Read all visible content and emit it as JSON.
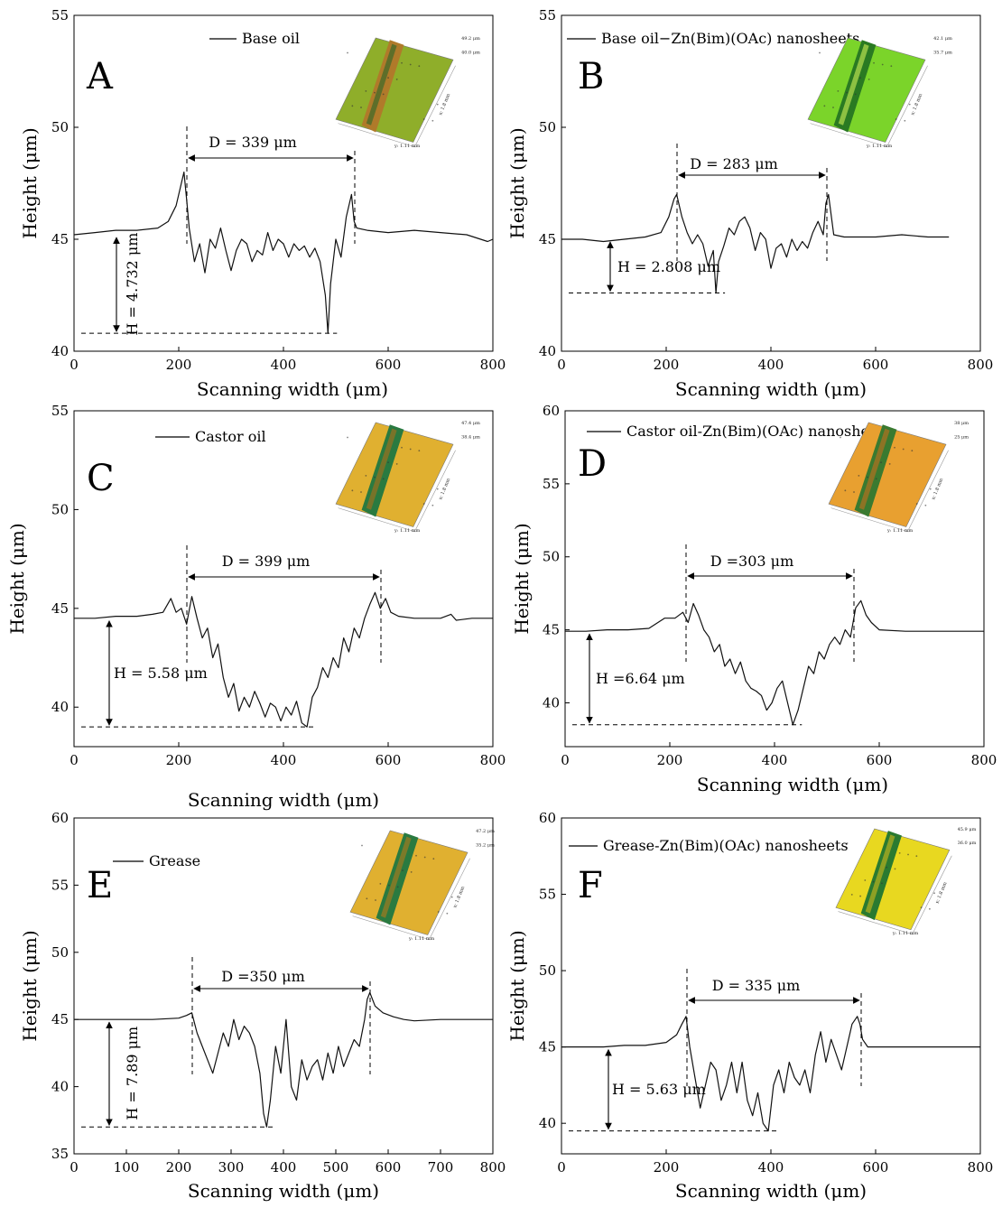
{
  "chart_data": [
    {
      "type": "line",
      "panel": "A",
      "legend": "Base oil",
      "xlabel": "Scanning width (μm)",
      "ylabel": "Height (μm)",
      "xlim": [
        0,
        800
      ],
      "ylim": [
        40,
        55
      ],
      "xticks": [
        "0",
        "200",
        "400",
        "600",
        "800"
      ],
      "yticks": [
        "40",
        "45",
        "50",
        "55"
      ],
      "annotations": {
        "D": "D = 339 μm",
        "H": "H = 4.732 μm"
      },
      "inset_labels": [
        "49.2 μm",
        "40.0 μm",
        "x: 1.8 mm",
        "y: 1.11 mm"
      ],
      "series": [
        {
          "x": [
            0,
            40,
            80,
            120,
            160,
            180,
            195,
            205,
            210,
            215,
            220,
            230,
            240,
            250,
            260,
            270,
            280,
            290,
            300,
            310,
            320,
            330,
            340,
            350,
            360,
            370,
            380,
            390,
            400,
            410,
            420,
            430,
            440,
            450,
            460,
            470,
            480,
            485,
            490,
            500,
            510,
            520,
            530,
            535,
            540,
            560,
            600,
            650,
            700,
            750,
            790,
            800
          ],
          "y": [
            45.2,
            45.3,
            45.4,
            45.4,
            45.5,
            45.8,
            46.5,
            47.5,
            48.0,
            46.8,
            45.5,
            44.0,
            44.8,
            43.5,
            45.0,
            44.6,
            45.5,
            44.5,
            43.6,
            44.5,
            45.0,
            44.8,
            44.0,
            44.5,
            44.3,
            45.3,
            44.5,
            45.0,
            44.8,
            44.2,
            44.8,
            44.5,
            44.7,
            44.2,
            44.6,
            44.0,
            42.5,
            40.8,
            43.0,
            45.0,
            44.2,
            46.0,
            47.0,
            45.8,
            45.5,
            45.4,
            45.3,
            45.4,
            45.3,
            45.2,
            44.9,
            45.0
          ]
        }
      ]
    },
    {
      "type": "line",
      "panel": "B",
      "legend": "Base oil−Zn(Bim)(OAc) nanosheets",
      "xlabel": "Scanning width (μm)",
      "ylabel": "Height (μm)",
      "xlim": [
        0,
        800
      ],
      "ylim": [
        40,
        55
      ],
      "xticks": [
        "0",
        "200",
        "400",
        "600",
        "800"
      ],
      "yticks": [
        "40",
        "45",
        "50",
        "55"
      ],
      "annotations": {
        "D": "D = 283 μm",
        "H": "H = 2.808 μm"
      },
      "inset_labels": [
        "42.1 μm",
        "35.7 μm",
        "x: 1.8 mm",
        "y: 1.11 mm"
      ],
      "series": [
        {
          "x": [
            0,
            40,
            80,
            120,
            160,
            190,
            205,
            215,
            220,
            230,
            240,
            250,
            260,
            270,
            280,
            290,
            295,
            300,
            310,
            320,
            330,
            340,
            350,
            360,
            370,
            380,
            390,
            400,
            410,
            420,
            430,
            440,
            450,
            460,
            470,
            480,
            490,
            500,
            505,
            510,
            520,
            540,
            600,
            650,
            700,
            740
          ],
          "y": [
            45.0,
            45.0,
            44.9,
            45.0,
            45.1,
            45.3,
            46.0,
            46.8,
            47.0,
            46.0,
            45.3,
            44.8,
            45.2,
            44.8,
            43.8,
            44.5,
            42.6,
            44.0,
            44.7,
            45.5,
            45.2,
            45.8,
            46.0,
            45.5,
            44.5,
            45.3,
            45.0,
            43.7,
            44.6,
            44.8,
            44.2,
            45.0,
            44.5,
            44.9,
            44.6,
            45.3,
            45.8,
            45.2,
            46.6,
            47.0,
            45.2,
            45.1,
            45.1,
            45.2,
            45.1,
            45.1
          ]
        }
      ]
    },
    {
      "type": "line",
      "panel": "C",
      "legend": "Castor oil",
      "xlabel": "Scanning width (μm)",
      "ylabel": "Height (μm)",
      "xlim": [
        0,
        800
      ],
      "ylim": [
        38,
        55
      ],
      "xticks": [
        "0",
        "200",
        "400",
        "600",
        "800"
      ],
      "yticks": [
        "40",
        "45",
        "50",
        "55"
      ],
      "annotations": {
        "D": "D = 399 μm",
        "H": "H = 5.58 μm"
      },
      "inset_labels": [
        "47.4 μm",
        "38.4 μm",
        "x: 1.8 mm",
        "y: 1.11 mm"
      ],
      "series": [
        {
          "x": [
            0,
            40,
            80,
            120,
            150,
            170,
            185,
            195,
            205,
            215,
            225,
            235,
            245,
            255,
            265,
            275,
            285,
            295,
            305,
            315,
            325,
            335,
            345,
            355,
            365,
            375,
            385,
            395,
            405,
            415,
            425,
            435,
            445,
            455,
            465,
            475,
            485,
            495,
            505,
            515,
            525,
            535,
            545,
            555,
            565,
            575,
            585,
            595,
            605,
            620,
            650,
            700,
            720,
            730,
            760,
            800
          ],
          "y": [
            44.5,
            44.5,
            44.6,
            44.6,
            44.7,
            44.8,
            45.5,
            44.8,
            45.0,
            44.2,
            45.6,
            44.5,
            43.5,
            44.0,
            42.5,
            43.2,
            41.5,
            40.5,
            41.2,
            39.8,
            40.5,
            40.0,
            40.8,
            40.2,
            39.5,
            40.2,
            40.0,
            39.3,
            40.0,
            39.6,
            40.3,
            39.2,
            39.0,
            40.5,
            41.0,
            42.0,
            41.5,
            42.5,
            42.0,
            43.5,
            42.8,
            44.0,
            43.5,
            44.5,
            45.2,
            45.8,
            45.0,
            45.5,
            44.8,
            44.6,
            44.5,
            44.5,
            44.7,
            44.4,
            44.5,
            44.5
          ]
        }
      ]
    },
    {
      "type": "line",
      "panel": "D",
      "legend": "Castor oil-Zn(Bim)(OAc) nanosheets",
      "xlabel": "Scanning width (μm)",
      "ylabel": "Height (μm)",
      "xlim": [
        0,
        800
      ],
      "ylim": [
        37,
        60
      ],
      "xticks": [
        "0",
        "200",
        "400",
        "600",
        "800"
      ],
      "yticks": [
        "40",
        "45",
        "50",
        "55",
        "60"
      ],
      "annotations": {
        "D": "D =303 μm",
        "H": "H =6.64 μm"
      },
      "inset_labels": [
        "38 μm",
        "25 μm",
        "x: 1.8 mm",
        "y: 1.11 mm"
      ],
      "series": [
        {
          "x": [
            0,
            40,
            80,
            120,
            160,
            190,
            210,
            225,
            235,
            245,
            255,
            265,
            275,
            285,
            295,
            305,
            315,
            325,
            335,
            345,
            355,
            365,
            375,
            385,
            395,
            405,
            415,
            425,
            435,
            445,
            455,
            465,
            475,
            485,
            495,
            505,
            515,
            525,
            535,
            545,
            555,
            565,
            575,
            585,
            600,
            650,
            700,
            750,
            800
          ],
          "y": [
            44.9,
            44.9,
            45.0,
            45.0,
            45.1,
            45.8,
            45.8,
            46.2,
            45.5,
            46.8,
            46.0,
            45.0,
            44.5,
            43.5,
            44.0,
            42.5,
            43.0,
            42.0,
            42.8,
            41.5,
            41.0,
            40.8,
            40.5,
            39.5,
            40.0,
            41.0,
            41.5,
            40.0,
            38.5,
            39.5,
            41.0,
            42.5,
            42.0,
            43.5,
            43.0,
            44.0,
            44.5,
            44.0,
            45.0,
            44.5,
            46.5,
            47.0,
            46.0,
            45.5,
            45.0,
            44.9,
            44.9,
            44.9,
            44.9
          ]
        }
      ]
    },
    {
      "type": "line",
      "panel": "E",
      "legend": "Grease",
      "xlabel": "Scanning width (μm)",
      "ylabel": "Height (μm)",
      "xlim": [
        0,
        800
      ],
      "ylim": [
        35,
        60
      ],
      "xticks": [
        "0",
        "100",
        "200",
        "300",
        "400",
        "500",
        "600",
        "700",
        "800"
      ],
      "yticks": [
        "35",
        "40",
        "45",
        "50",
        "55",
        "60"
      ],
      "annotations": {
        "D": "D =350 μm",
        "H": "H = 7.89 μm"
      },
      "inset_labels": [
        "47.2 μm",
        "35.2 μm",
        "x: 1.8 mm",
        "y: 1.11 mm"
      ],
      "series": [
        {
          "x": [
            0,
            50,
            100,
            150,
            200,
            215,
            225,
            235,
            245,
            255,
            265,
            275,
            285,
            295,
            305,
            315,
            325,
            335,
            345,
            355,
            362,
            368,
            375,
            385,
            395,
            405,
            415,
            425,
            435,
            445,
            455,
            465,
            475,
            485,
            495,
            505,
            515,
            525,
            535,
            545,
            555,
            560,
            565,
            575,
            590,
            610,
            630,
            650,
            700,
            750,
            800
          ],
          "y": [
            45.0,
            45.0,
            45.0,
            45.0,
            45.1,
            45.3,
            45.5,
            44.0,
            43.0,
            42.0,
            41.0,
            42.5,
            44.0,
            43.0,
            45.0,
            43.5,
            44.5,
            44.0,
            43.0,
            41.0,
            38.0,
            37.0,
            39.0,
            43.0,
            41.0,
            45.0,
            40.0,
            39.0,
            42.0,
            40.5,
            41.5,
            42.0,
            40.5,
            42.5,
            41.0,
            43.0,
            41.5,
            42.5,
            43.5,
            43.0,
            45.0,
            46.5,
            47.0,
            46.0,
            45.5,
            45.2,
            45.0,
            44.9,
            45.0,
            45.0,
            45.0
          ]
        }
      ]
    },
    {
      "type": "line",
      "panel": "F",
      "legend": "Grease-Zn(Bim)(OAc) nanosheets",
      "xlabel": "Scanning width (μm)",
      "ylabel": "Height (μm)",
      "xlim": [
        0,
        800
      ],
      "ylim": [
        38,
        60
      ],
      "xticks": [
        "0",
        "200",
        "400",
        "600",
        "800"
      ],
      "yticks": [
        "40",
        "45",
        "50",
        "55",
        "60"
      ],
      "annotations": {
        "D": "D = 335 μm",
        "H": "H = 5.63 μm"
      },
      "inset_labels": [
        "45.9 μm",
        "36.0 μm",
        "x: 1.8 mm",
        "y: 1.11 mm"
      ],
      "series": [
        {
          "x": [
            0,
            40,
            80,
            120,
            160,
            200,
            220,
            230,
            238,
            245,
            255,
            265,
            275,
            285,
            295,
            305,
            315,
            325,
            335,
            345,
            355,
            365,
            375,
            385,
            395,
            405,
            415,
            425,
            435,
            445,
            455,
            465,
            475,
            485,
            495,
            505,
            515,
            525,
            535,
            545,
            555,
            565,
            570,
            575,
            585,
            600,
            650,
            700,
            750,
            800
          ],
          "y": [
            45.0,
            45.0,
            45.0,
            45.1,
            45.1,
            45.3,
            45.8,
            46.5,
            47.0,
            45.0,
            43.0,
            41.0,
            42.5,
            44.0,
            43.5,
            41.5,
            42.5,
            44.0,
            42.0,
            44.0,
            41.5,
            40.5,
            42.0,
            40.0,
            39.5,
            42.5,
            43.5,
            42.0,
            44.0,
            43.0,
            42.5,
            43.5,
            42.0,
            44.5,
            46.0,
            44.0,
            45.5,
            44.5,
            43.5,
            45.0,
            46.5,
            47.0,
            46.5,
            45.5,
            45.0,
            45.0,
            45.0,
            45.0,
            45.0,
            45.0
          ]
        }
      ]
    }
  ]
}
